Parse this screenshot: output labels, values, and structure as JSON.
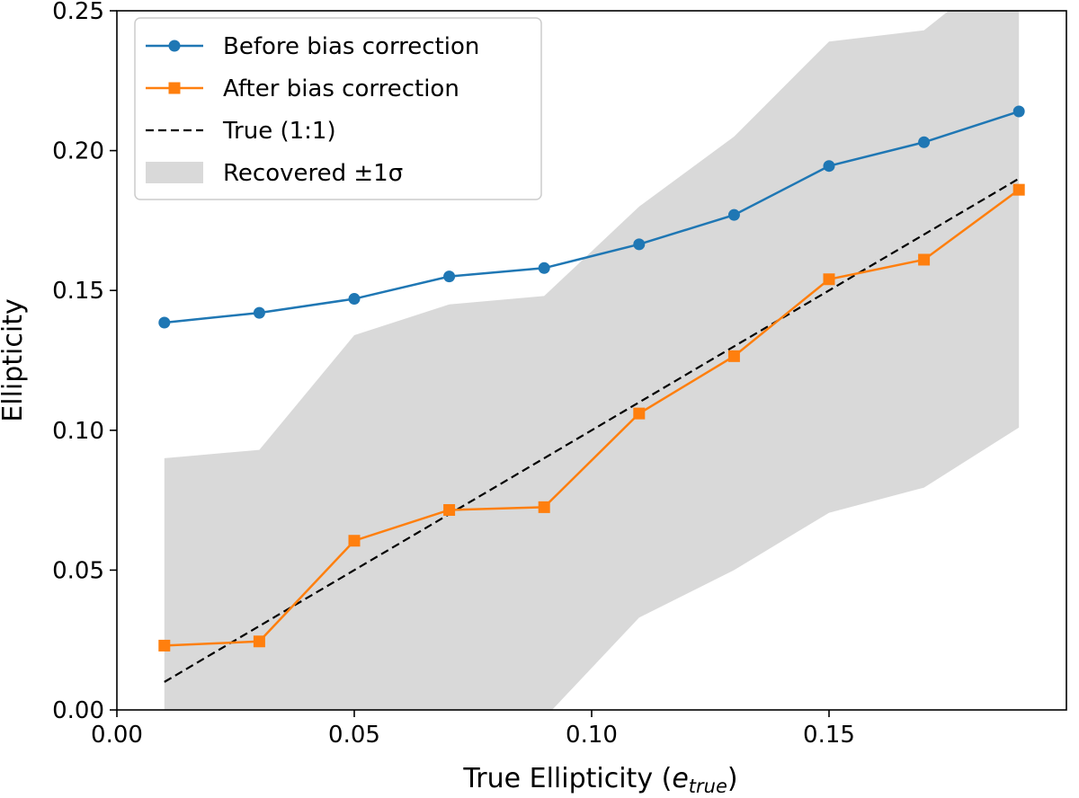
{
  "chart_data": {
    "type": "line",
    "xlabel_main": "True Ellipticity (",
    "xlabel_sym": "e",
    "xlabel_sub": "true",
    "xlabel_close": ")",
    "ylabel": "Ellipticity",
    "xlim": [
      0.0,
      0.2
    ],
    "ylim": [
      0.0,
      0.25
    ],
    "xticks": [
      0.0,
      0.05,
      0.1,
      0.15
    ],
    "xtick_labels": [
      "0.00",
      "0.05",
      "0.10",
      "0.15"
    ],
    "yticks": [
      0.0,
      0.05,
      0.1,
      0.15,
      0.2,
      0.25
    ],
    "ytick_labels": [
      "0.00",
      "0.05",
      "0.10",
      "0.15",
      "0.20",
      "0.25"
    ],
    "grid": false,
    "legend_position": "top-left",
    "x": [
      0.01,
      0.03,
      0.05,
      0.07,
      0.09,
      0.11,
      0.13,
      0.15,
      0.17,
      0.19
    ],
    "series": [
      {
        "name": "Before bias correction",
        "color": "#1f77b4",
        "marker": "circle",
        "values": [
          0.1385,
          0.142,
          0.147,
          0.155,
          0.158,
          0.1665,
          0.177,
          0.1945,
          0.203,
          0.214
        ]
      },
      {
        "name": "After bias correction",
        "color": "#ff7f0e",
        "marker": "square",
        "values": [
          0.023,
          0.0245,
          0.0605,
          0.0715,
          0.0725,
          0.106,
          0.1265,
          0.154,
          0.161,
          0.186
        ]
      }
    ],
    "reference_line": {
      "name": "True (1:1)",
      "color": "#000000",
      "style": "dashed",
      "x": [
        0.01,
        0.19
      ],
      "y": [
        0.01,
        0.19
      ]
    },
    "band": {
      "name": "Recovered ±1σ",
      "color": "#d9d9d9",
      "x": [
        0.01,
        0.03,
        0.05,
        0.07,
        0.09,
        0.11,
        0.13,
        0.15,
        0.17,
        0.19
      ],
      "upper": [
        0.09,
        0.093,
        0.134,
        0.145,
        0.148,
        0.18,
        0.205,
        0.239,
        0.243,
        0.27
      ],
      "lower": [
        -0.02,
        -0.018,
        -0.012,
        -0.008,
        -0.003,
        0.033,
        0.05,
        0.0705,
        0.0795,
        0.101
      ]
    }
  }
}
